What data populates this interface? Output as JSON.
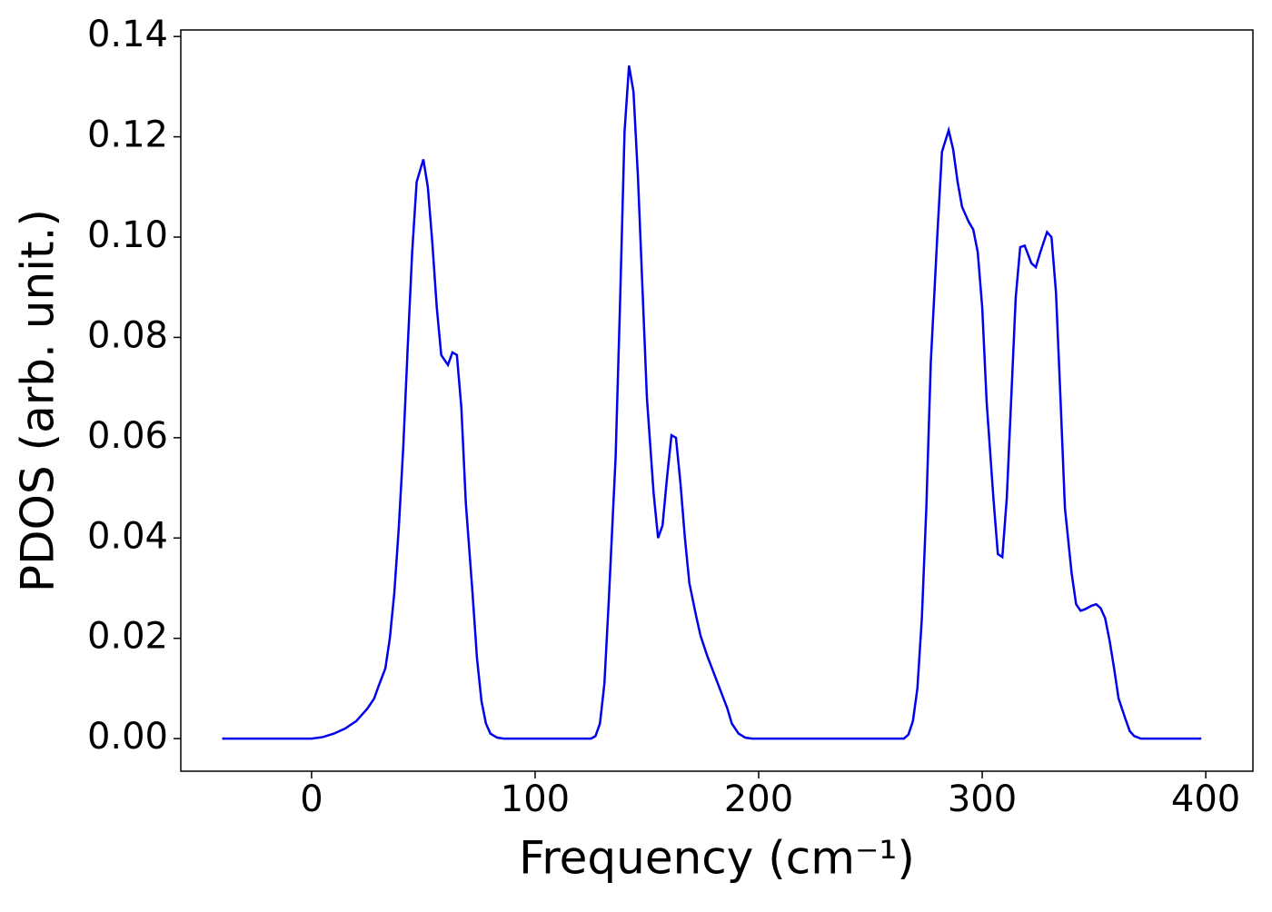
{
  "chart_data": {
    "type": "line",
    "x_label": "Frequency (cm⁻¹)",
    "y_label": "PDOS (arb. unit.)",
    "xlim": [
      -58.5,
      421.1
    ],
    "ylim": [
      -0.0065,
      0.1413
    ],
    "xticks": [
      0,
      100,
      200,
      300,
      400
    ],
    "yticks": [
      {
        "value": 0,
        "label": "0.00"
      },
      {
        "value": 0.02,
        "label": "0.02"
      },
      {
        "value": 0.04,
        "label": "0.04"
      },
      {
        "value": 0.06,
        "label": "0.06"
      },
      {
        "value": 0.08,
        "label": "0.08"
      },
      {
        "value": 0.1,
        "label": "0.10"
      },
      {
        "value": 0.12,
        "label": "0.12"
      },
      {
        "value": 0.14,
        "label": "0.14"
      }
    ],
    "x": [
      -40,
      0,
      5,
      10,
      15,
      20,
      25,
      28,
      30,
      33,
      35,
      37,
      39,
      41,
      43,
      45,
      47,
      50,
      52,
      54,
      56,
      58,
      61,
      63,
      65,
      67,
      69,
      72,
      74,
      76,
      78,
      80,
      83,
      86,
      125,
      127,
      129,
      131,
      133,
      136,
      138,
      140,
      142,
      144,
      146,
      148,
      150,
      153,
      155,
      157,
      159,
      161,
      163,
      165,
      167,
      169,
      172,
      174,
      177,
      180,
      183,
      186,
      188,
      191,
      194,
      197,
      265,
      267,
      269,
      271,
      273,
      275,
      277,
      280,
      282,
      285,
      287,
      289,
      291,
      294,
      296,
      298,
      300,
      302,
      305,
      307,
      309,
      311,
      313,
      315,
      317,
      319,
      322,
      324,
      326,
      329,
      331,
      333,
      335,
      337,
      340,
      342,
      344,
      346,
      349,
      351,
      353,
      355,
      357,
      359,
      361,
      364,
      366,
      368,
      371,
      398
    ],
    "series": [
      {
        "color": "#0000ee",
        "values": [
          0,
          0,
          0.0003,
          0.001,
          0.002,
          0.0035,
          0.006,
          0.008,
          0.0105,
          0.014,
          0.02,
          0.029,
          0.042,
          0.058,
          0.078,
          0.097,
          0.111,
          0.1155,
          0.11,
          0.099,
          0.086,
          0.0765,
          0.0745,
          0.077,
          0.0765,
          0.066,
          0.047,
          0.029,
          0.016,
          0.0075,
          0.003,
          0.001,
          0.0002,
          0,
          0,
          0.0005,
          0.003,
          0.011,
          0.028,
          0.056,
          0.087,
          0.121,
          0.1342,
          0.129,
          0.112,
          0.09,
          0.068,
          0.049,
          0.04,
          0.0425,
          0.052,
          0.0605,
          0.06,
          0.051,
          0.04,
          0.031,
          0.0245,
          0.0205,
          0.0165,
          0.013,
          0.0095,
          0.006,
          0.003,
          0.001,
          0.0002,
          0,
          0,
          0.0008,
          0.0035,
          0.01,
          0.024,
          0.046,
          0.075,
          0.101,
          0.117,
          0.1213,
          0.1175,
          0.111,
          0.106,
          0.103,
          0.1015,
          0.097,
          0.086,
          0.067,
          0.048,
          0.0368,
          0.0362,
          0.048,
          0.068,
          0.088,
          0.098,
          0.0983,
          0.0948,
          0.094,
          0.097,
          0.101,
          0.1,
          0.089,
          0.068,
          0.046,
          0.033,
          0.0268,
          0.0255,
          0.0258,
          0.0265,
          0.0268,
          0.026,
          0.024,
          0.0195,
          0.014,
          0.008,
          0.004,
          0.0015,
          0.0005,
          0,
          0
        ]
      }
    ]
  }
}
